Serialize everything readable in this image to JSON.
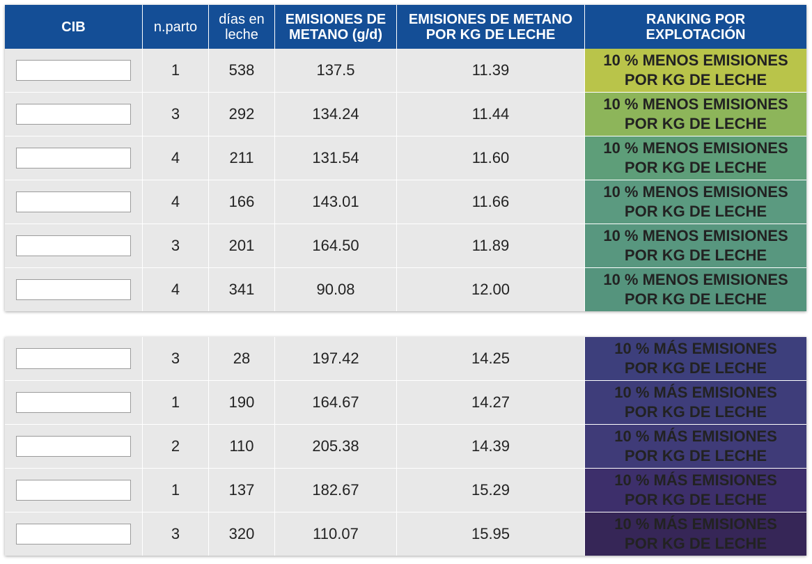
{
  "header": {
    "columns": [
      "CIB",
      "n.parto",
      "días en\nleche",
      "EMISIONES DE\nMETANO (g/d)",
      "EMISIONES DE METANO\nPOR KG DE LECHE",
      "RANKING POR\nEXPLOTACIÓN"
    ]
  },
  "top_rows": [
    {
      "cib": "",
      "parto": "1",
      "dias": "538",
      "emisiones": "137.5",
      "por_kg": "11.39",
      "rank_line1": "10 % MENOS EMISIONES",
      "rank_line2": "POR KG DE LECHE",
      "rank_color": "#b9c44a"
    },
    {
      "cib": "",
      "parto": "3",
      "dias": "292",
      "emisiones": "134.24",
      "por_kg": "11.44",
      "rank_line1": "10 % MENOS EMISIONES",
      "rank_line2": "POR KG DE LECHE",
      "rank_color": "#8db55a"
    },
    {
      "cib": "",
      "parto": "4",
      "dias": "211",
      "emisiones": "131.54",
      "por_kg": "11.60",
      "rank_line1": "10 % MENOS EMISIONES",
      "rank_line2": "POR KG DE LECHE",
      "rank_color": "#5e9e79"
    },
    {
      "cib": "",
      "parto": "4",
      "dias": "166",
      "emisiones": "143.01",
      "por_kg": "11.66",
      "rank_line1": "10 % MENOS EMISIONES",
      "rank_line2": "POR KG DE LECHE",
      "rank_color": "#5b9a80"
    },
    {
      "cib": "",
      "parto": "3",
      "dias": "201",
      "emisiones": "164.50",
      "por_kg": "11.89",
      "rank_line1": "10 % MENOS EMISIONES",
      "rank_line2": "POR KG DE LECHE",
      "rank_color": "#58977f"
    },
    {
      "cib": "",
      "parto": "4",
      "dias": "341",
      "emisiones": "90.08",
      "por_kg": "12.00",
      "rank_line1": "10 % MENOS EMISIONES",
      "rank_line2": "POR KG DE LECHE",
      "rank_color": "#55947d"
    }
  ],
  "bottom_rows": [
    {
      "cib": "",
      "parto": "3",
      "dias": "28",
      "emisiones": "197.42",
      "por_kg": "14.25",
      "rank_line1": "10 % MÁS EMISIONES",
      "rank_line2": "POR KG DE LECHE",
      "rank_color": "#3d3f7c"
    },
    {
      "cib": "",
      "parto": "1",
      "dias": "190",
      "emisiones": "164.67",
      "por_kg": "14.27",
      "rank_line1": "10 % MÁS EMISIONES",
      "rank_line2": "POR KG DE LECHE",
      "rank_color": "#3e3d7a"
    },
    {
      "cib": "",
      "parto": "2",
      "dias": "110",
      "emisiones": "205.38",
      "por_kg": "14.39",
      "rank_line1": "10 % MÁS EMISIONES",
      "rank_line2": "POR KG DE LECHE",
      "rank_color": "#3f3b78"
    },
    {
      "cib": "",
      "parto": "1",
      "dias": "137",
      "emisiones": "182.67",
      "por_kg": "15.29",
      "rank_line1": "10 % MÁS EMISIONES",
      "rank_line2": "POR KG DE LECHE",
      "rank_color": "#3d2f6b"
    },
    {
      "cib": "",
      "parto": "3",
      "dias": "320",
      "emisiones": "110.07",
      "por_kg": "15.95",
      "rank_line1": "10 % MÁS EMISIONES",
      "rank_line2": "POR KG DE LECHE",
      "rank_color": "#362657"
    }
  ]
}
